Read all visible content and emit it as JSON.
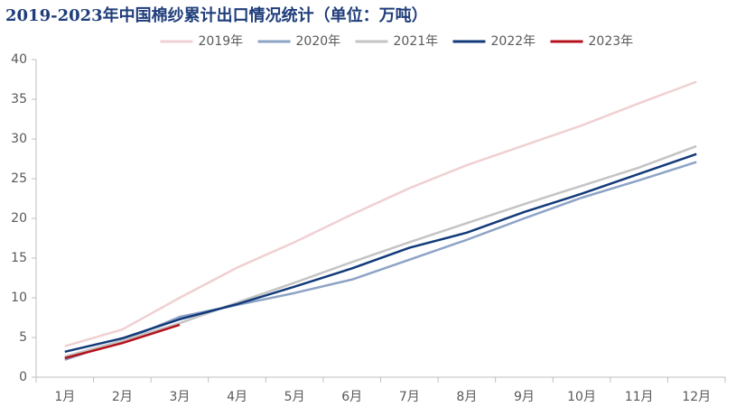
{
  "chart_data": {
    "type": "line",
    "title": "2019-2023年中国棉纱累计出口情况统计（单位：万吨）",
    "categories": [
      "1月",
      "2月",
      "3月",
      "4月",
      "5月",
      "6月",
      "7月",
      "8月",
      "9月",
      "10月",
      "11月",
      "12月"
    ],
    "series": [
      {
        "name": "2019年",
        "color": "#f0d0d2",
        "values": [
          3.9,
          6.0,
          10.0,
          13.8,
          17.0,
          20.5,
          23.8,
          26.7,
          29.2,
          31.7,
          34.5,
          37.2
        ]
      },
      {
        "name": "2020年",
        "color": "#8da3c6",
        "values": [
          2.2,
          4.6,
          7.6,
          9.1,
          10.6,
          12.3,
          14.8,
          17.3,
          20.0,
          22.6,
          24.8,
          27.1
        ]
      },
      {
        "name": "2021年",
        "color": "#c4c4c4",
        "values": [
          2.6,
          4.6,
          6.8,
          9.4,
          11.9,
          14.5,
          17.0,
          19.4,
          21.8,
          24.1,
          26.4,
          29.1
        ]
      },
      {
        "name": "2022年",
        "color": "#123a7a",
        "values": [
          3.2,
          4.9,
          7.3,
          9.2,
          11.4,
          13.7,
          16.3,
          18.2,
          20.8,
          23.1,
          25.6,
          28.1
        ]
      },
      {
        "name": "2023年",
        "color": "#b5121b",
        "values": [
          2.4,
          4.3,
          6.6,
          null,
          null,
          null,
          null,
          null,
          null,
          null,
          null,
          null
        ]
      }
    ],
    "ylim": [
      0,
      40
    ],
    "yticks": [
      0,
      5,
      10,
      15,
      20,
      25,
      30,
      35,
      40
    ],
    "grid": false,
    "legend": "top"
  }
}
